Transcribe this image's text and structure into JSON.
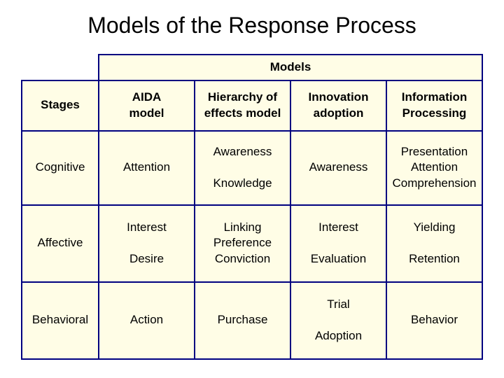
{
  "title": "Models of the Response Process",
  "header": {
    "models_label": "Models",
    "stages_label": "Stages",
    "columns": {
      "aida": "AIDA\nmodel",
      "hierarchy": "Hierarchy of\neffects model",
      "innovation": "Innovation\nadoption",
      "information": "Information\nProcessing"
    }
  },
  "rows": {
    "cognitive": {
      "label": "Cognitive",
      "aida": "Attention",
      "hierarchy": "Awareness\n\nKnowledge",
      "innovation": "Awareness",
      "information": "Presentation\nAttention\nComprehension"
    },
    "affective": {
      "label": "Affective",
      "aida": "Interest\n\nDesire",
      "hierarchy": "Linking\nPreference\nConviction",
      "innovation": "Interest\n\nEvaluation",
      "information": "Yielding\n\nRetention"
    },
    "behavioral": {
      "label": "Behavioral",
      "aida": "Action",
      "hierarchy": "Purchase",
      "innovation": "Trial\n\nAdoption",
      "information": "Behavior"
    }
  },
  "style": {
    "background_color": "#ffffff",
    "table_fill": "#fffde6",
    "border_color": "#000080",
    "title_fontsize": 32,
    "cell_fontsize": 17,
    "header_fontweight": 700,
    "border_width": 2
  }
}
